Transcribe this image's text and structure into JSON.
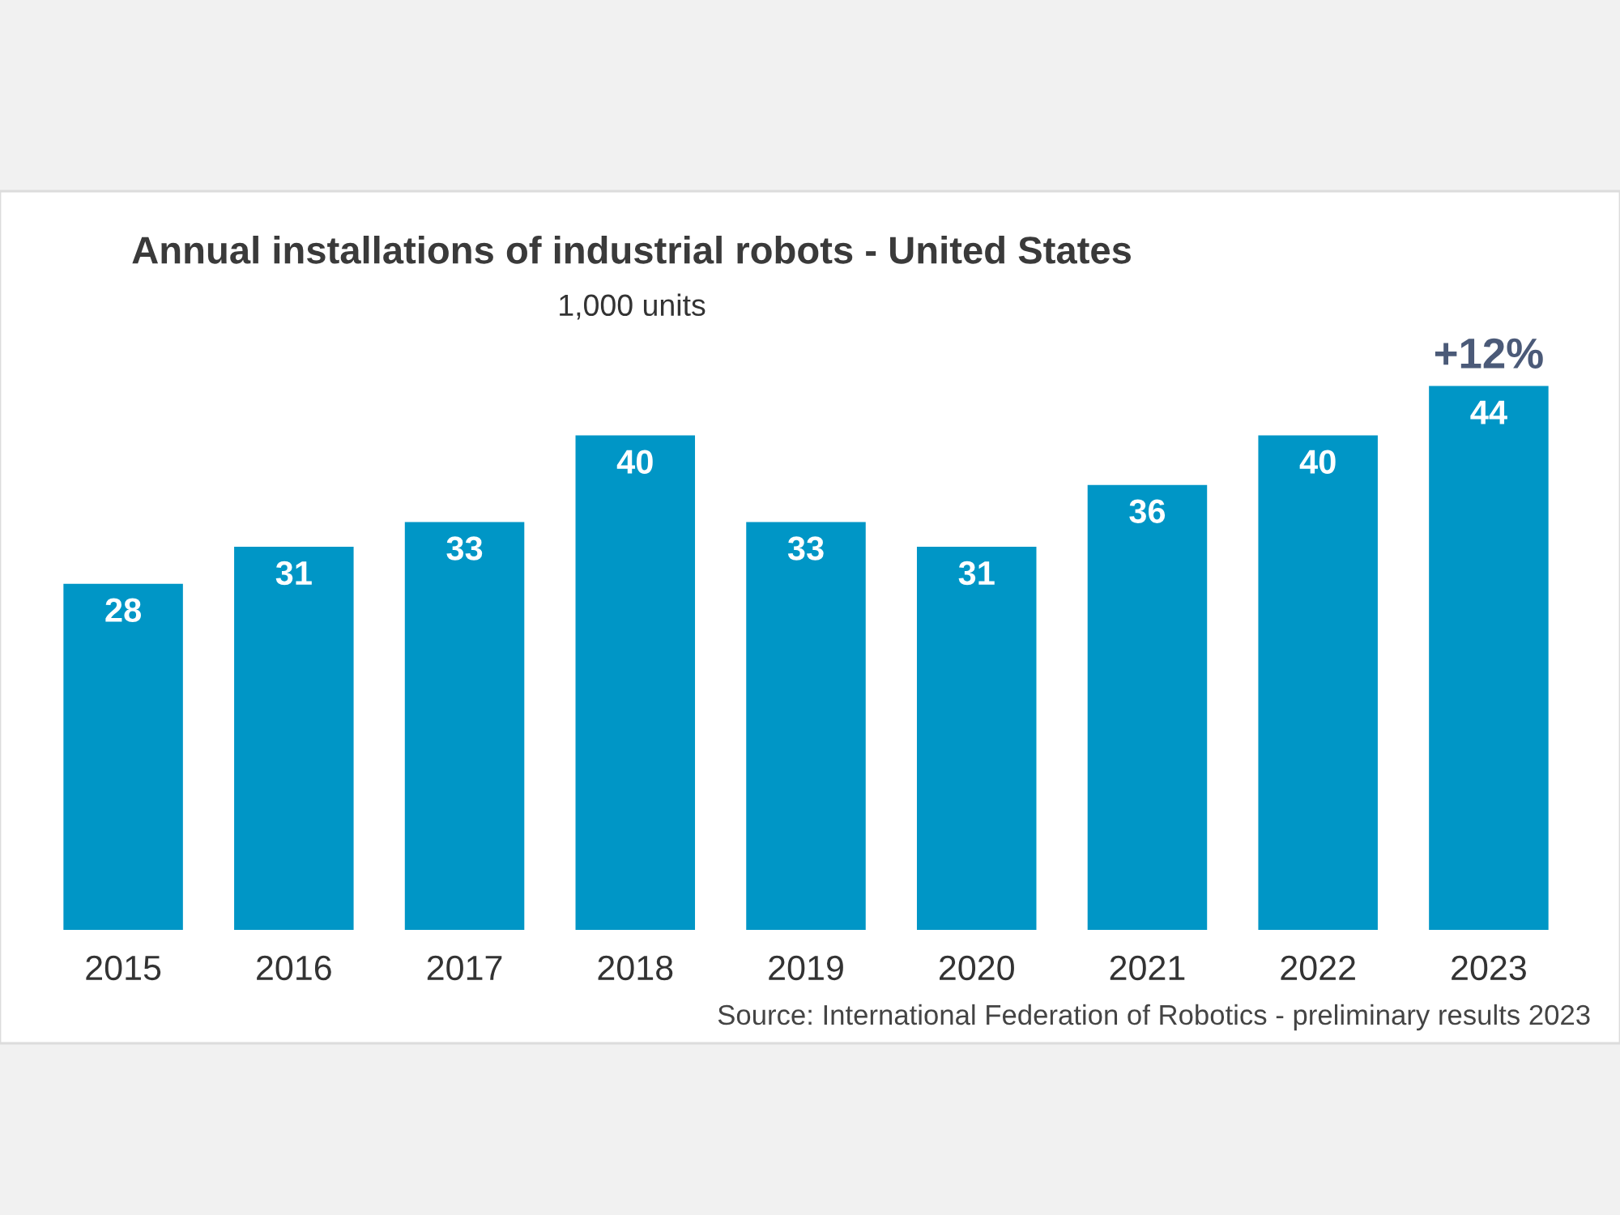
{
  "chart_data": {
    "type": "bar",
    "title": "Annual installations of industrial robots - United States",
    "subtitle": "1,000 units",
    "categories": [
      "2015",
      "2016",
      "2017",
      "2018",
      "2019",
      "2020",
      "2021",
      "2022",
      "2023"
    ],
    "values": [
      28,
      31,
      33,
      40,
      33,
      31,
      36,
      40,
      44
    ],
    "color": "#0096c6",
    "data_labels": true,
    "annotations": [
      {
        "text": "+12%",
        "x": "2023",
        "y": 44
      },
      "Source: International Federation of Robotics - preliminary results 2023"
    ]
  }
}
